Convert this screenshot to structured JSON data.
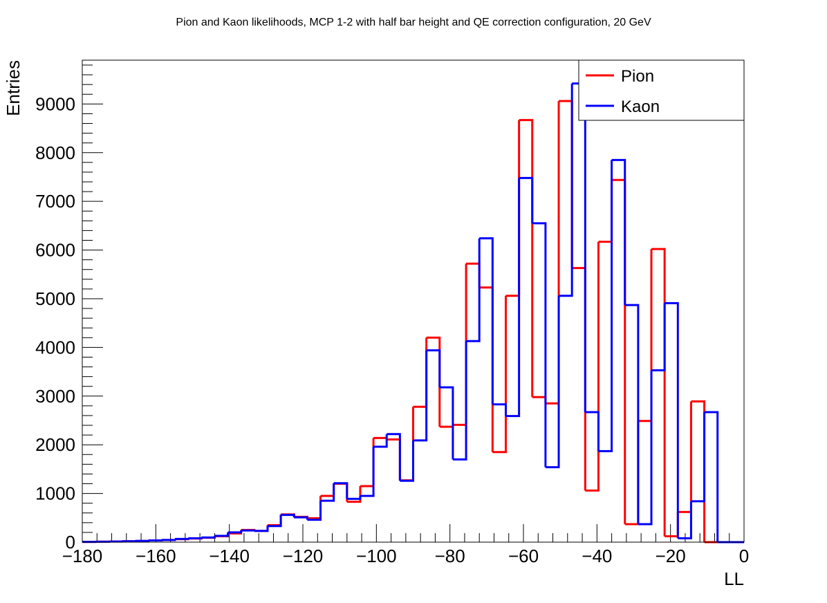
{
  "chart_data": {
    "type": "histogram",
    "title": "Pion and Kaon likelihoods, MCP 1-2 with half bar height and QE correction configuration, 20 GeV",
    "xlabel": "LL",
    "ylabel": "Entries",
    "xlim": [
      -180,
      0
    ],
    "ylim": [
      0,
      9900
    ],
    "bin_edges": [
      -180,
      -176.4,
      -172.8,
      -169.2,
      -165.6,
      -162,
      -158.4,
      -154.8,
      -151.2,
      -147.6,
      -144,
      -140.4,
      -136.8,
      -133.2,
      -129.6,
      -126,
      -122.4,
      -118.8,
      -115.2,
      -111.6,
      -108,
      -104.4,
      -100.8,
      -97.2,
      -93.6,
      -90,
      -86.4,
      -82.8,
      -79.2,
      -75.6,
      -72,
      -68.4,
      -64.8,
      -61.2,
      -57.6,
      -54,
      -50.4,
      -46.8,
      -43.2,
      -39.6,
      -36,
      -32.4,
      -28.8,
      -25.2,
      -21.6,
      -18,
      -14.4,
      -10.8,
      -7.2,
      -3.6,
      0
    ],
    "x_ticks": [
      -180,
      -160,
      -140,
      -120,
      -100,
      -80,
      -60,
      -40,
      -20,
      0
    ],
    "x_tick_labels": [
      "−180",
      "−160",
      "−140",
      "−120",
      "−100",
      "−80",
      "−60",
      "−40",
      "−20",
      "0"
    ],
    "y_ticks": [
      0,
      1000,
      2000,
      3000,
      4000,
      5000,
      6000,
      7000,
      8000,
      9000
    ],
    "y_tick_labels": [
      "0",
      "1000",
      "2000",
      "3000",
      "4000",
      "5000",
      "6000",
      "7000",
      "8000",
      "9000"
    ],
    "series": [
      {
        "name": "Pion",
        "color": "#ff0000",
        "values": [
          5,
          10,
          15,
          20,
          25,
          35,
          45,
          60,
          75,
          90,
          120,
          180,
          250,
          230,
          350,
          570,
          520,
          490,
          950,
          1200,
          830,
          1150,
          2140,
          2110,
          1270,
          2780,
          4200,
          2370,
          2410,
          5720,
          5230,
          1850,
          5060,
          8670,
          2980,
          2850,
          9060,
          5630,
          1060,
          6170,
          7440,
          370,
          2490,
          6020,
          120,
          620,
          2890,
          0,
          0,
          0
        ]
      },
      {
        "name": "Kaon",
        "color": "#0000ff",
        "values": [
          5,
          8,
          12,
          18,
          25,
          35,
          45,
          65,
          80,
          95,
          130,
          200,
          240,
          230,
          330,
          560,
          510,
          460,
          850,
          1210,
          890,
          950,
          1960,
          2220,
          1260,
          2090,
          3940,
          3180,
          1700,
          4130,
          6240,
          2830,
          2590,
          7480,
          6550,
          1540,
          5060,
          9420,
          2670,
          1870,
          7850,
          4870,
          370,
          3530,
          4910,
          80,
          840,
          2670,
          0,
          0
        ]
      }
    ],
    "legend": {
      "position": "top-right",
      "entries": [
        {
          "label": "Pion",
          "color": "#ff0000"
        },
        {
          "label": "Kaon",
          "color": "#0000ff"
        }
      ]
    },
    "grid": false
  }
}
